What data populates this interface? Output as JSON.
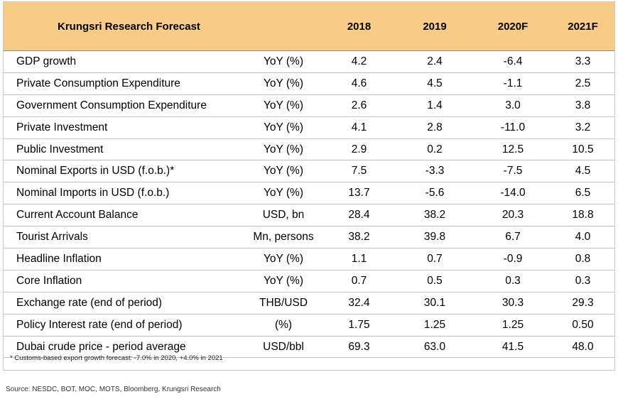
{
  "header": {
    "title": "Krungsri Research Forecast",
    "years": [
      "2018",
      "2019",
      "2020F",
      "2021F"
    ]
  },
  "rows": [
    {
      "label": "GDP growth",
      "unit": "YoY (%)",
      "values": [
        "4.2",
        "2.4",
        "-6.4",
        "3.3"
      ]
    },
    {
      "label": "Private Consumption Expenditure",
      "unit": "YoY (%)",
      "values": [
        "4.6",
        "4.5",
        "-1.1",
        "2.5"
      ]
    },
    {
      "label": "Government Consumption Expenditure",
      "unit": "YoY (%)",
      "values": [
        "2.6",
        "1.4",
        "3.0",
        "3.8"
      ]
    },
    {
      "label": "Private Investment",
      "unit": "YoY (%)",
      "values": [
        "4.1",
        "2.8",
        "-11.0",
        "3.2"
      ]
    },
    {
      "label": "Public Investment",
      "unit": "YoY (%)",
      "values": [
        "2.9",
        "0.2",
        "12.5",
        "10.5"
      ]
    },
    {
      "label": "Nominal Exports in USD (f.o.b.)*",
      "unit": "YoY (%)",
      "values": [
        "7.5",
        "-3.3",
        "-7.5",
        "4.5"
      ]
    },
    {
      "label": "Nominal Imports in USD (f.o.b.)",
      "unit": "YoY (%)",
      "values": [
        "13.7",
        "-5.6",
        "-14.0",
        "6.5"
      ]
    },
    {
      "label": "Current Account Balance",
      "unit": "USD, bn",
      "values": [
        "28.4",
        "38.2",
        "20.3",
        "18.8"
      ]
    },
    {
      "label": "Tourist Arrivals",
      "unit": "Mn, persons",
      "values": [
        "38.2",
        "39.8",
        "6.7",
        "4.0"
      ]
    },
    {
      "label": "Headline Inflation",
      "unit": "YoY (%)",
      "values": [
        "1.1",
        "0.7",
        "-0.9",
        "0.8"
      ]
    },
    {
      "label": "Core Inflation",
      "unit": "YoY (%)",
      "values": [
        "0.7",
        "0.5",
        "0.3",
        "0.3"
      ]
    },
    {
      "label": "Exchange rate (end of period)",
      "unit": "THB/USD",
      "values": [
        "32.4",
        "30.1",
        "30.3",
        "29.3"
      ]
    },
    {
      "label": "Policy Interest rate (end of period)",
      "unit": "(%)",
      "values": [
        "1.75",
        "1.25",
        "1.25",
        "0.50"
      ]
    },
    {
      "label": "Dubai crude price - period average",
      "unit": "USD/bbl",
      "values": [
        "69.3",
        "63.0",
        "41.5",
        "48.0"
      ]
    }
  ],
  "footnote": "* Customs-based export growth forecast: -7.0% in 2020, +4.0% in 2021",
  "source": "Source: NESDC, BOT, MOC, MOTS, Bloomberg, Krungsri Research",
  "colors": {
    "header_bg": "#f8cb86",
    "grid": "#bfbfbf"
  }
}
